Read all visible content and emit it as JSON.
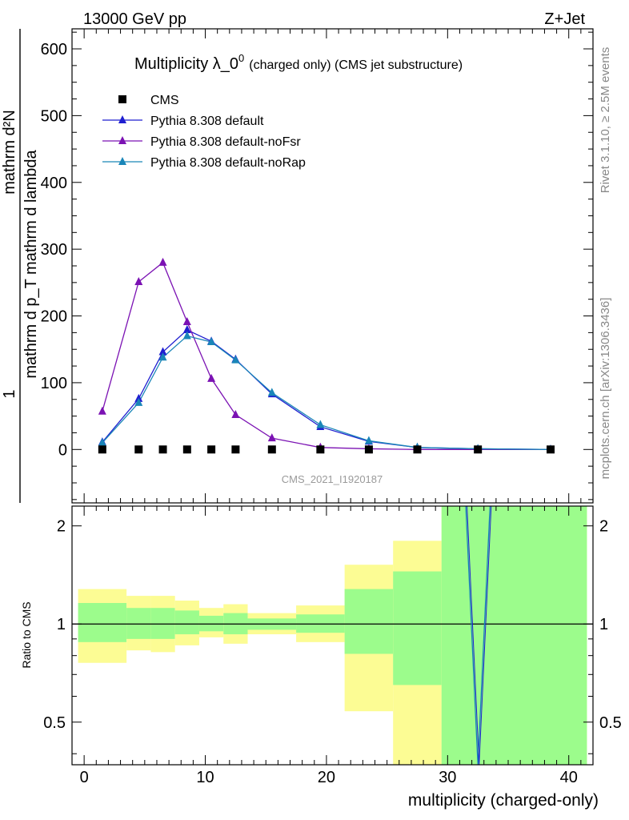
{
  "header": {
    "left": "13000 GeV pp",
    "right": "Z+Jet"
  },
  "side_labels": {
    "rivet": "Rivet 3.1.10, ≥ 2.5M events",
    "mcplots": "mcplots.cern.ch [arXiv:1306.3436]"
  },
  "watermark": "CMS_2021_I1920187",
  "colors": {
    "cms": "#000000",
    "default": "#1f1fd0",
    "noFsr": "#7b12b3",
    "noRap": "#1a86b8",
    "band_inner": "#9cfc8c",
    "band_outer": "#fcfc94"
  },
  "chart_data": [
    {
      "type": "scatter+line",
      "title": "Multiplicity λ_0",
      "title_sup": "0",
      "title_small": "(charged only) (CMS jet substructure)",
      "ylabel_top": "1",
      "ylabel_bottom": "mathrm d N / mathrm d p_T mathrm d N",
      "ylabel_numerator": "mathrm d²N",
      "ylabel_denominator": "mathrm d p_T mathrm d lambda",
      "xlim": [
        -1,
        42
      ],
      "ylim": [
        -80,
        630
      ],
      "yticks": [
        0,
        100,
        200,
        300,
        400,
        500,
        600
      ],
      "series": [
        {
          "name": "CMS",
          "marker": "square",
          "x": [
            1.5,
            4.5,
            6.5,
            8.5,
            10.5,
            12.5,
            15.5,
            19.5,
            23.5,
            27.5,
            32.5,
            38.5
          ],
          "y": [
            0,
            0,
            0,
            0,
            0,
            0,
            0,
            0,
            0,
            0,
            0,
            0
          ]
        },
        {
          "name": "Pythia 8.308 default",
          "marker": "triangle",
          "x": [
            1.5,
            4.5,
            6.5,
            8.5,
            10.5,
            12.5,
            15.5,
            19.5,
            23.5,
            27.5,
            32.5,
            38.5
          ],
          "y": [
            11,
            76,
            146,
            179,
            162,
            135,
            83,
            34,
            12,
            3,
            1,
            0
          ]
        },
        {
          "name": "Pythia 8.308 default-noFsr",
          "marker": "triangle",
          "x": [
            1.5,
            4.5,
            6.5,
            8.5,
            10.5,
            12.5,
            15.5,
            19.5,
            23.5,
            27.5,
            32.5,
            38.5
          ],
          "y": [
            57,
            251,
            280,
            191,
            106,
            52,
            17,
            3,
            1,
            0,
            0,
            0
          ]
        },
        {
          "name": "Pythia 8.308 default-noRap",
          "marker": "triangle",
          "x": [
            1.5,
            4.5,
            6.5,
            8.5,
            10.5,
            12.5,
            15.5,
            19.5,
            23.5,
            27.5,
            32.5,
            38.5
          ],
          "y": [
            10,
            70,
            138,
            170,
            161,
            134,
            85,
            37,
            13,
            3,
            1,
            0
          ]
        }
      ]
    },
    {
      "type": "ratio",
      "ylabel": "Ratio to CMS",
      "xlabel": "multiplicity (charged-only)",
      "xlim": [
        -1,
        42
      ],
      "ylim": [
        0.37,
        2.3
      ],
      "xticks": [
        0,
        10,
        20,
        30,
        40
      ],
      "yticks": [
        0.5,
        1,
        2
      ],
      "bins": [
        {
          "x0": -0.5,
          "x1": 3.5,
          "inner_lo": 0.88,
          "inner_hi": 1.16,
          "outer_lo": 0.76,
          "outer_hi": 1.28
        },
        {
          "x0": 3.5,
          "x1": 5.5,
          "inner_lo": 0.9,
          "inner_hi": 1.12,
          "outer_lo": 0.83,
          "outer_hi": 1.22
        },
        {
          "x0": 5.5,
          "x1": 7.5,
          "inner_lo": 0.9,
          "inner_hi": 1.12,
          "outer_lo": 0.82,
          "outer_hi": 1.22
        },
        {
          "x0": 7.5,
          "x1": 9.5,
          "inner_lo": 0.93,
          "inner_hi": 1.1,
          "outer_lo": 0.86,
          "outer_hi": 1.18
        },
        {
          "x0": 9.5,
          "x1": 11.5,
          "inner_lo": 0.95,
          "inner_hi": 1.06,
          "outer_lo": 0.91,
          "outer_hi": 1.12
        },
        {
          "x0": 11.5,
          "x1": 13.5,
          "inner_lo": 0.93,
          "inner_hi": 1.08,
          "outer_lo": 0.87,
          "outer_hi": 1.15
        },
        {
          "x0": 13.5,
          "x1": 17.5,
          "inner_lo": 0.96,
          "inner_hi": 1.04,
          "outer_lo": 0.93,
          "outer_hi": 1.08
        },
        {
          "x0": 17.5,
          "x1": 21.5,
          "inner_lo": 0.94,
          "inner_hi": 1.07,
          "outer_lo": 0.88,
          "outer_hi": 1.14
        },
        {
          "x0": 21.5,
          "x1": 25.5,
          "inner_lo": 0.81,
          "inner_hi": 1.28,
          "outer_lo": 0.54,
          "outer_hi": 1.52
        },
        {
          "x0": 25.5,
          "x1": 29.5,
          "inner_lo": 0.65,
          "inner_hi": 1.45,
          "outer_lo": 0.3,
          "outer_hi": 1.8
        },
        {
          "x0": 29.5,
          "x1": 41.5,
          "inner_lo": 0.3,
          "inner_hi": 2.6,
          "outer_lo": 0.3,
          "outer_hi": 2.6
        }
      ],
      "ratio_line": {
        "name": "Pythia 8.308 default",
        "x": [
          31.5,
          32.5,
          33.5
        ],
        "y": [
          2.5,
          0.3,
          2.5
        ]
      }
    }
  ]
}
